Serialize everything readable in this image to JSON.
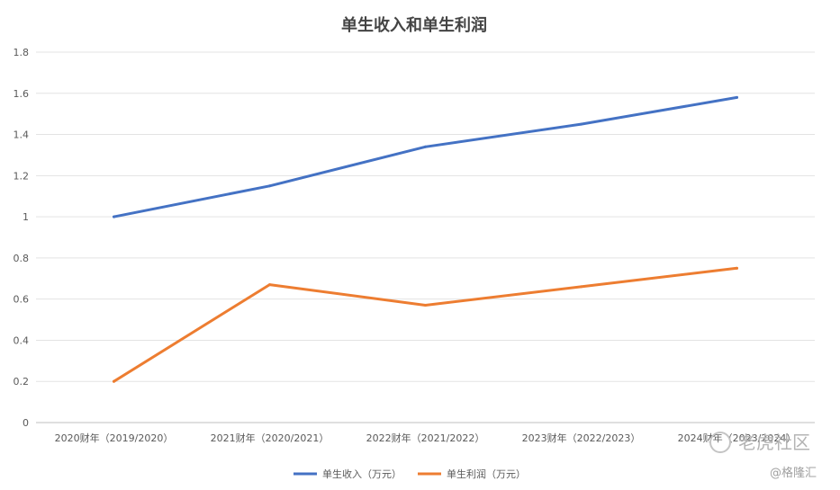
{
  "chart_data": {
    "type": "line",
    "title": "单生收入和单生利润",
    "categories": [
      "2020财年（2019/2020）",
      "2021财年（2020/2021）",
      "2022财年（2021/2022）",
      "2023财年（2022/2023）",
      "2024财年（2023/2024）"
    ],
    "series": [
      {
        "name": "单生收入（万元）",
        "color": "#4472c4",
        "values": [
          1.0,
          1.15,
          1.34,
          1.45,
          1.58
        ]
      },
      {
        "name": "单生利润（万元）",
        "color": "#ed7d31",
        "values": [
          0.2,
          0.67,
          0.57,
          0.66,
          0.75
        ]
      }
    ],
    "y_ticks": [
      "0",
      "0.2",
      "0.4",
      "0.6",
      "0.8",
      "1",
      "1.2",
      "1.4",
      "1.6",
      "1.8"
    ],
    "ylim": [
      0,
      1.8
    ],
    "grid": true,
    "legend_position": "bottom"
  },
  "watermark": {
    "text": "老虎社区",
    "handle": "@格隆汇"
  }
}
